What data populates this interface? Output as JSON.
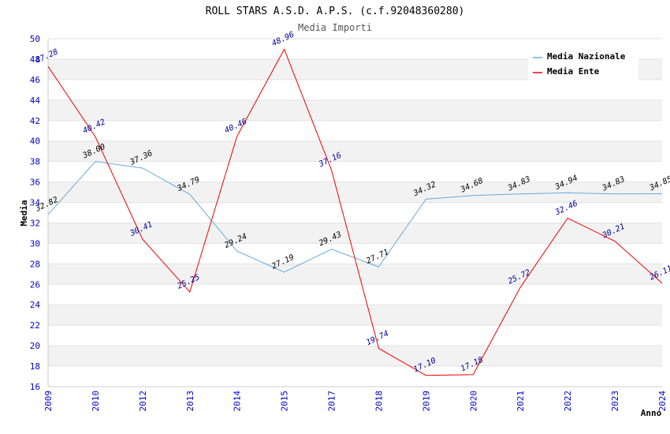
{
  "chart_data": {
    "type": "line",
    "title": "ROLL STARS A.S.D. A.P.S. (c.f.92048360280)",
    "subtitle": "Media Importi",
    "xlabel": "Anno",
    "ylabel": "Media",
    "ylim": [
      16,
      50
    ],
    "ytick_step": 2,
    "grid": true,
    "legend_position": "top-right",
    "categories": [
      "2009",
      "2010",
      "2012",
      "2013",
      "2014",
      "2015",
      "2017",
      "2018",
      "2019",
      "2020",
      "2021",
      "2022",
      "2023",
      "2024"
    ],
    "series": [
      {
        "name": "Media Nazionale",
        "color": "#66aadd",
        "label_color": "#000000",
        "values": [
          32.82,
          38.0,
          37.36,
          34.79,
          29.24,
          27.19,
          29.43,
          27.71,
          34.32,
          34.68,
          34.83,
          34.94,
          34.83,
          34.85
        ],
        "labels": [
          "32.82",
          "38.00",
          "37.36",
          "34.79",
          "29.24",
          "27.19",
          "29.43",
          "27.71",
          "34.32",
          "34.68",
          "34.83",
          "34.94",
          "34.83",
          "34.85"
        ]
      },
      {
        "name": "Media Ente",
        "color": "#ee0000",
        "label_color": "#000099",
        "values": [
          47.28,
          40.42,
          30.41,
          25.25,
          40.46,
          48.96,
          37.16,
          19.74,
          17.1,
          17.18,
          25.72,
          32.46,
          30.21,
          26.11
        ],
        "labels": [
          "47.28",
          "40.42",
          "30.41",
          "25.25",
          "40.46",
          "48.96",
          "37.16",
          "19.74",
          "17.10",
          "17.18",
          "25.72",
          "32.46",
          "30.21",
          "26.11"
        ]
      }
    ]
  }
}
